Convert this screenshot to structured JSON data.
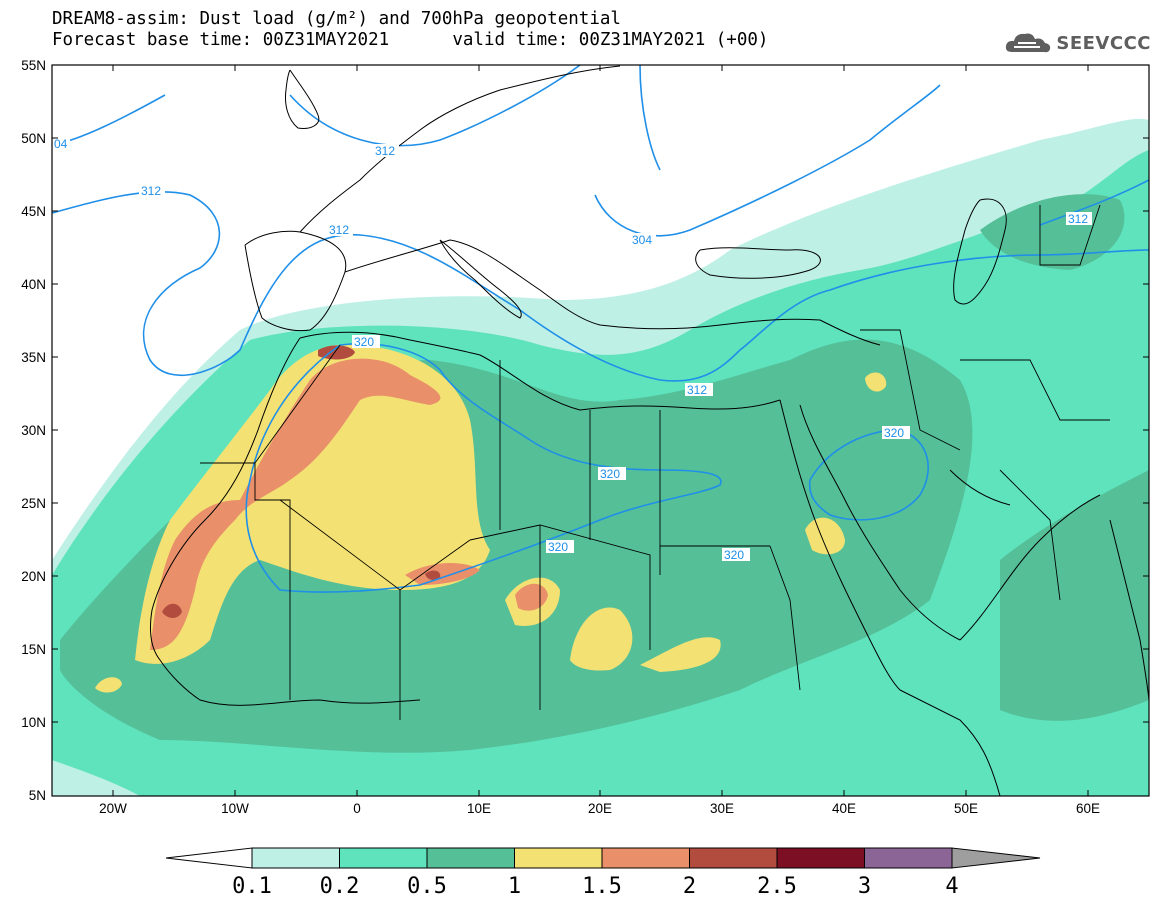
{
  "header": {
    "title_line1": "DREAM8-assim: Dust load (g/m²) and 700hPa geopotential",
    "title_line2": "Forecast base time: 00Z31MAY2021      valid time: 00Z31MAY2021 (+00)"
  },
  "logo": {
    "text": "SEEVCCC",
    "icon": "cloud-icon"
  },
  "map": {
    "lon_range": [
      -25,
      65
    ],
    "lat_range": [
      5,
      55
    ],
    "lat_ticks": [
      "55N",
      "50N",
      "45N",
      "40N",
      "35N",
      "30N",
      "25N",
      "20N",
      "15N",
      "10N",
      "5N"
    ],
    "lon_ticks": [
      "20W",
      "10W",
      "0",
      "10E",
      "20E",
      "30E",
      "40E",
      "50E",
      "60E"
    ],
    "contour_labels": [
      "04",
      "312",
      "312",
      "312",
      "304",
      "312",
      "320",
      "320",
      "320",
      "320",
      "320",
      "312"
    ]
  },
  "colorbar": {
    "labels": [
      "0.1",
      "0.2",
      "0.5",
      "1",
      "1.5",
      "2",
      "2.5",
      "3",
      "4"
    ],
    "colors": [
      "#ffffff",
      "#bff0e6",
      "#5ee3bd",
      "#55bf98",
      "#f3e273",
      "#e9906a",
      "#b14c3f",
      "#7d0f25",
      "#8b6596",
      "#9e9e9e"
    ]
  },
  "colors": {
    "contour": "#1f8fe8",
    "coast": "#000000"
  }
}
